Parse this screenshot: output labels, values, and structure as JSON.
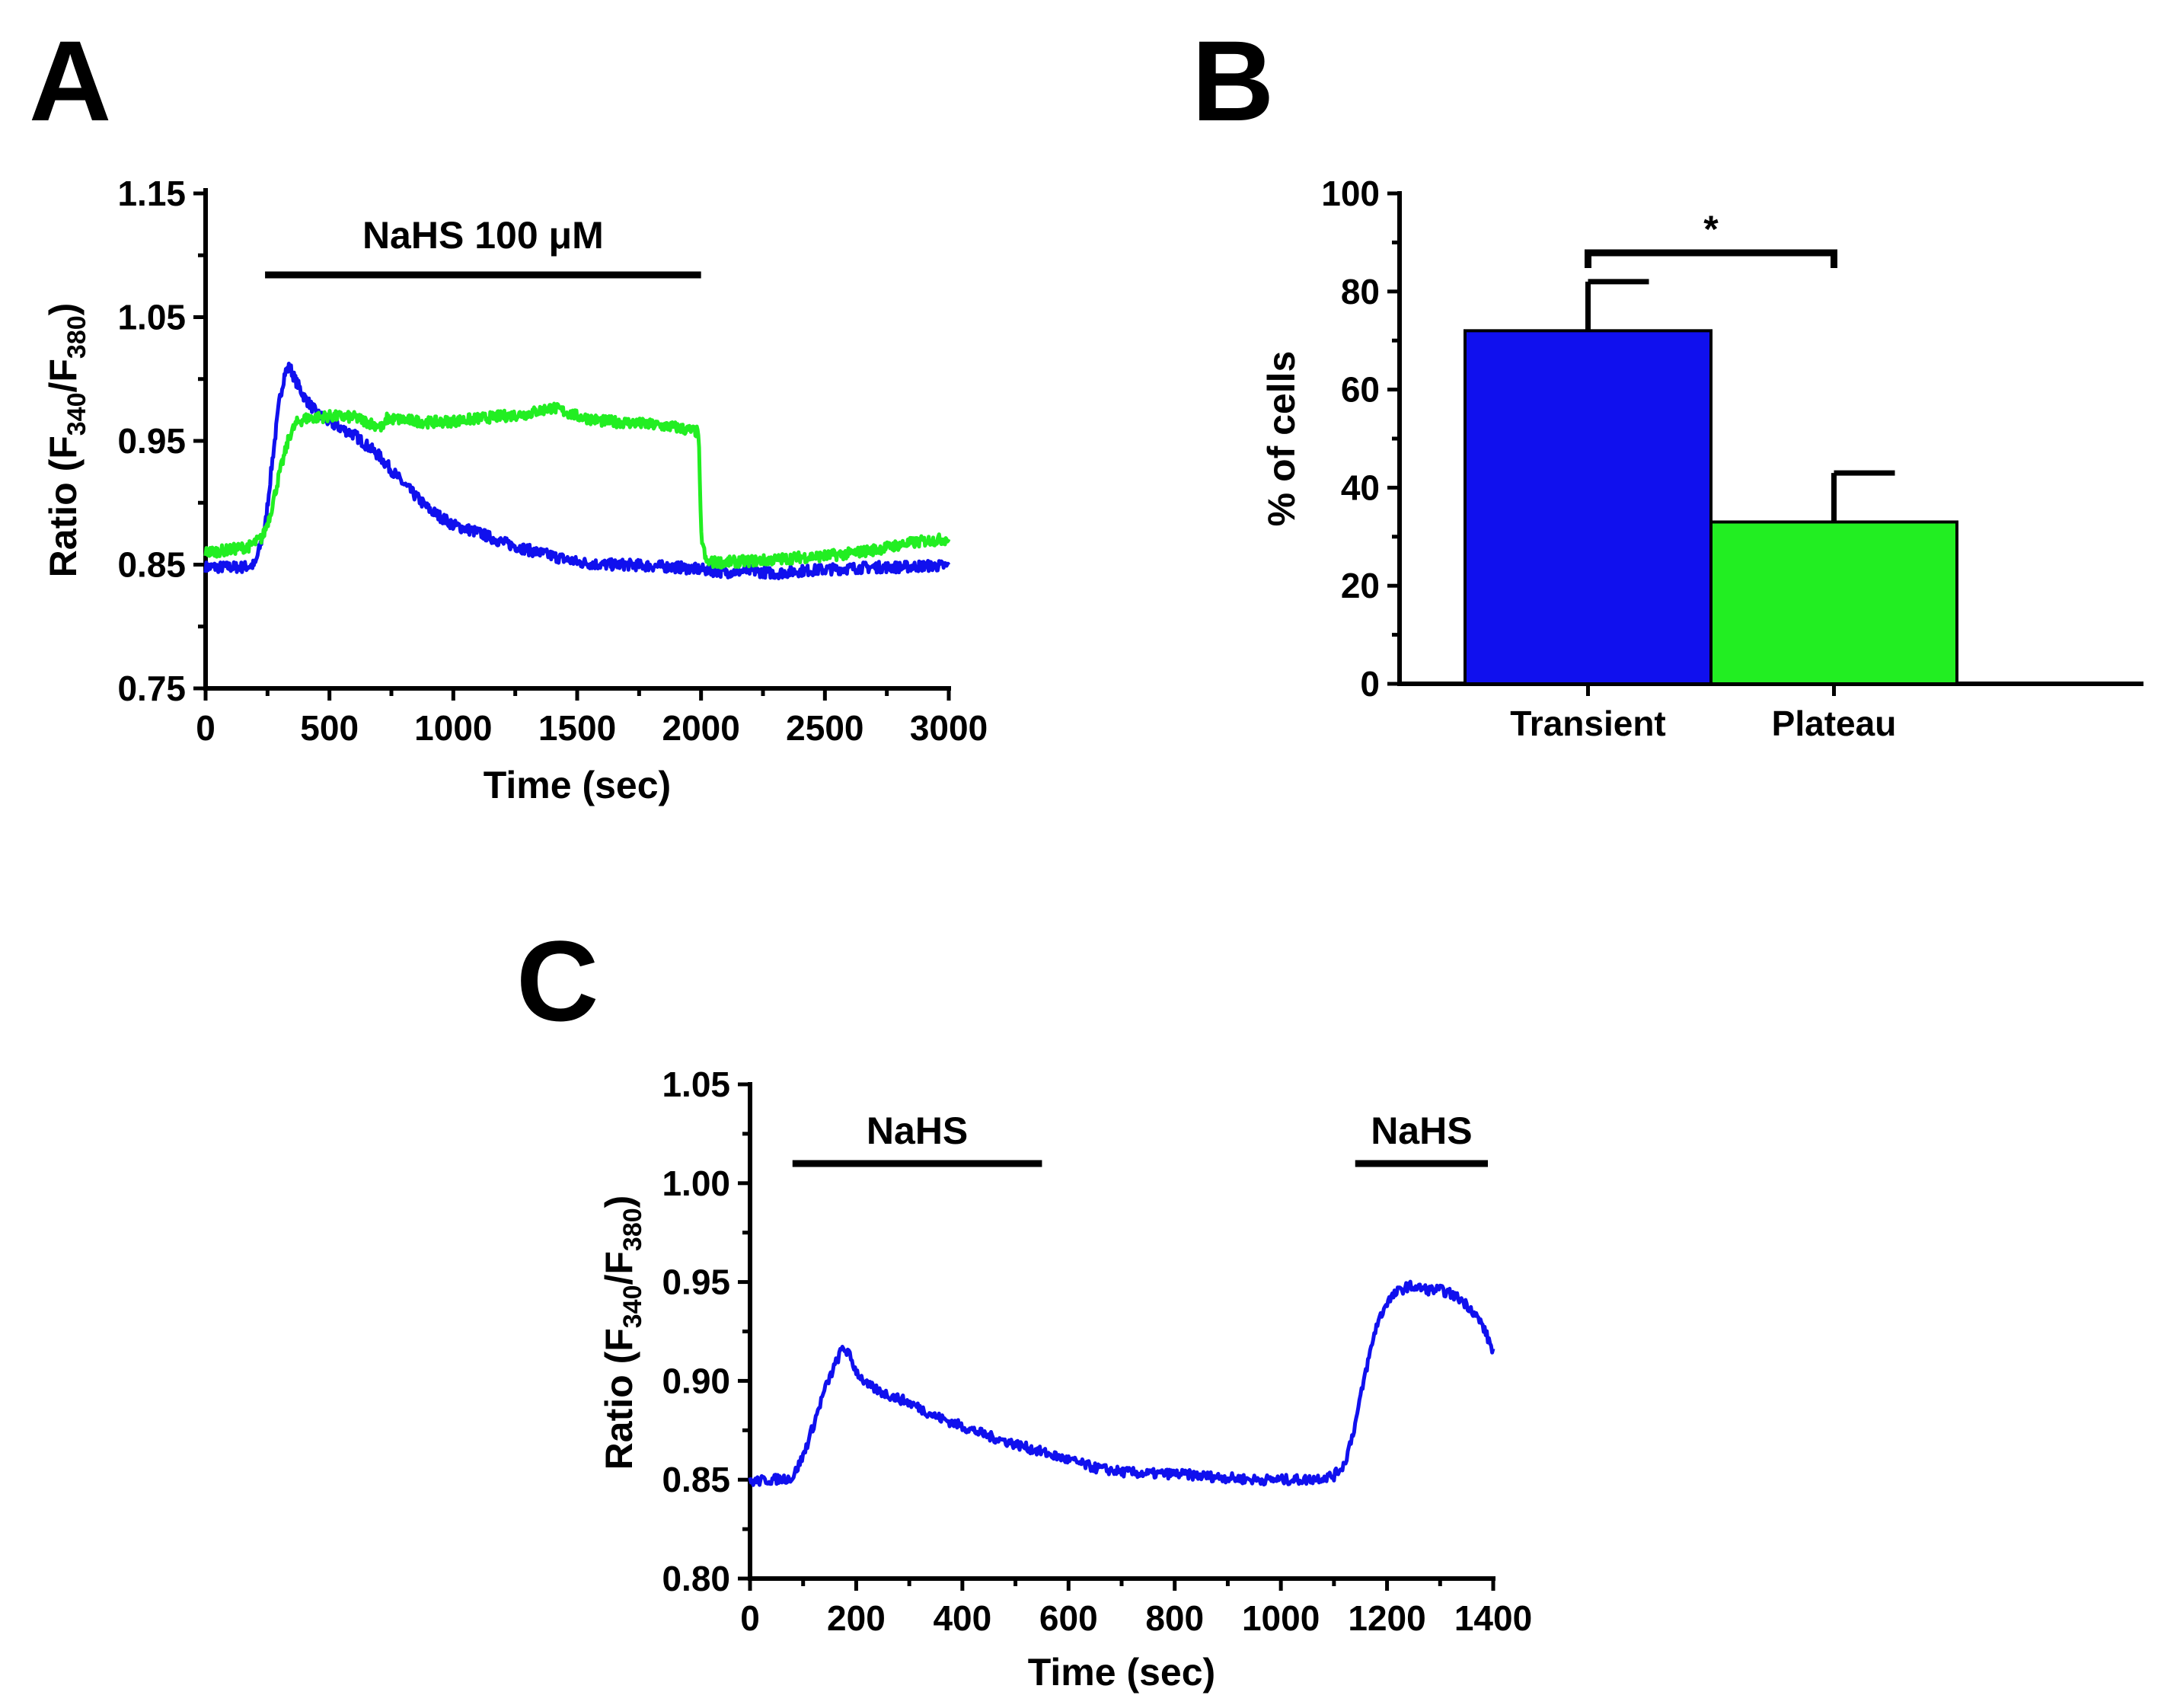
{
  "panels": {
    "a": "A",
    "b": "B",
    "c": "C"
  },
  "colors": {
    "transient": "#1010ee",
    "plateau": "#22ee22",
    "axis": "#000000"
  },
  "chart_data": [
    {
      "type": "line",
      "xlabel": "Time (sec)",
      "ylabel": {
        "main": "Ratio (F",
        "sub1": "340",
        "mid": "/F",
        "sub2": "380",
        "end": ")"
      },
      "xlim": [
        0,
        3000
      ],
      "ylim": [
        0.75,
        1.15
      ],
      "xticks": [
        0,
        500,
        1000,
        1500,
        2000,
        2500,
        3000
      ],
      "yticks": [
        0.75,
        0.85,
        0.95,
        1.05,
        1.15
      ],
      "ytick_labels": [
        "0.75",
        "0.85",
        "0.95",
        "1.05",
        "1.15"
      ],
      "annotation": {
        "label": "NaHS 100 μM",
        "x_start": 240,
        "x_end": 2000
      },
      "series": [
        {
          "color": "#1010ee",
          "x": [
            0,
            150,
            200,
            240,
            270,
            300,
            320,
            340,
            360,
            400,
            450,
            500,
            600,
            700,
            800,
            900,
            1000,
            1100,
            1200,
            1300,
            1400,
            1500,
            1600,
            1700,
            1800,
            1900,
            2000,
            2100,
            2200,
            2300,
            2400,
            2500,
            2600,
            2700,
            2800,
            2900,
            3000
          ],
          "y": [
            0.848,
            0.848,
            0.85,
            0.88,
            0.935,
            0.985,
            1.005,
            1.01,
            1.0,
            0.985,
            0.972,
            0.965,
            0.955,
            0.938,
            0.915,
            0.895,
            0.882,
            0.876,
            0.868,
            0.862,
            0.857,
            0.852,
            0.85,
            0.85,
            0.849,
            0.848,
            0.846,
            0.844,
            0.845,
            0.843,
            0.845,
            0.846,
            0.847,
            0.848,
            0.848,
            0.849,
            0.849
          ]
        },
        {
          "color": "#22ee22",
          "x": [
            0,
            100,
            180,
            230,
            260,
            300,
            340,
            370,
            400,
            500,
            600,
            700,
            720,
            730,
            800,
            900,
            1000,
            1100,
            1200,
            1300,
            1400,
            1500,
            1600,
            1700,
            1800,
            1900,
            1990,
            2000,
            2020,
            2100,
            2200,
            2300,
            2400,
            2500,
            2600,
            2700,
            2800,
            2900,
            3000
          ],
          "y": [
            0.86,
            0.862,
            0.865,
            0.872,
            0.89,
            0.925,
            0.955,
            0.965,
            0.968,
            0.97,
            0.969,
            0.962,
            0.96,
            0.968,
            0.967,
            0.965,
            0.966,
            0.968,
            0.97,
            0.972,
            0.977,
            0.97,
            0.966,
            0.965,
            0.963,
            0.961,
            0.957,
            0.875,
            0.852,
            0.852,
            0.853,
            0.854,
            0.856,
            0.857,
            0.859,
            0.862,
            0.866,
            0.869,
            0.871
          ]
        }
      ]
    },
    {
      "type": "bar",
      "ylabel": "% of cells",
      "ylim": [
        0,
        100
      ],
      "yticks": [
        0,
        20,
        40,
        60,
        80,
        100
      ],
      "categories": [
        "Transient",
        "Plateau"
      ],
      "values": [
        72,
        33
      ],
      "errors": [
        10,
        10
      ],
      "bar_colors": [
        "#1010ee",
        "#22ee22"
      ],
      "significance": "*"
    },
    {
      "type": "line",
      "xlabel": "Time (sec)",
      "ylabel": {
        "main": "Ratio (F",
        "sub1": "340",
        "mid": "/F",
        "sub2": "380",
        "end": ")"
      },
      "xlim": [
        0,
        1400
      ],
      "ylim": [
        0.8,
        1.05
      ],
      "xticks": [
        0,
        200,
        400,
        600,
        800,
        1000,
        1200,
        1400
      ],
      "yticks": [
        0.8,
        0.85,
        0.9,
        0.95,
        1.0,
        1.05
      ],
      "ytick_labels": [
        "0.80",
        "0.85",
        "0.90",
        "0.95",
        "1.00",
        "1.05"
      ],
      "annotations": [
        {
          "label": "NaHS",
          "x_start": 80,
          "x_end": 550
        },
        {
          "label": "NaHS",
          "x_start": 1140,
          "x_end": 1390
        }
      ],
      "series": [
        {
          "color": "#1010ee",
          "x": [
            0,
            40,
            80,
            100,
            120,
            140,
            160,
            175,
            185,
            200,
            220,
            250,
            300,
            350,
            400,
            450,
            500,
            550,
            600,
            650,
            700,
            750,
            800,
            850,
            900,
            950,
            1000,
            1050,
            1100,
            1120,
            1140,
            1160,
            1180,
            1200,
            1220,
            1240,
            1260,
            1280,
            1300,
            1320,
            1340,
            1360,
            1380,
            1400
          ],
          "y": [
            0.849,
            0.85,
            0.851,
            0.862,
            0.878,
            0.895,
            0.908,
            0.917,
            0.914,
            0.905,
            0.898,
            0.894,
            0.889,
            0.882,
            0.877,
            0.872,
            0.868,
            0.864,
            0.86,
            0.856,
            0.854,
            0.853,
            0.853,
            0.852,
            0.851,
            0.85,
            0.85,
            0.85,
            0.852,
            0.858,
            0.878,
            0.905,
            0.928,
            0.94,
            0.945,
            0.948,
            0.947,
            0.946,
            0.946,
            0.944,
            0.941,
            0.936,
            0.928,
            0.915
          ]
        }
      ]
    }
  ]
}
